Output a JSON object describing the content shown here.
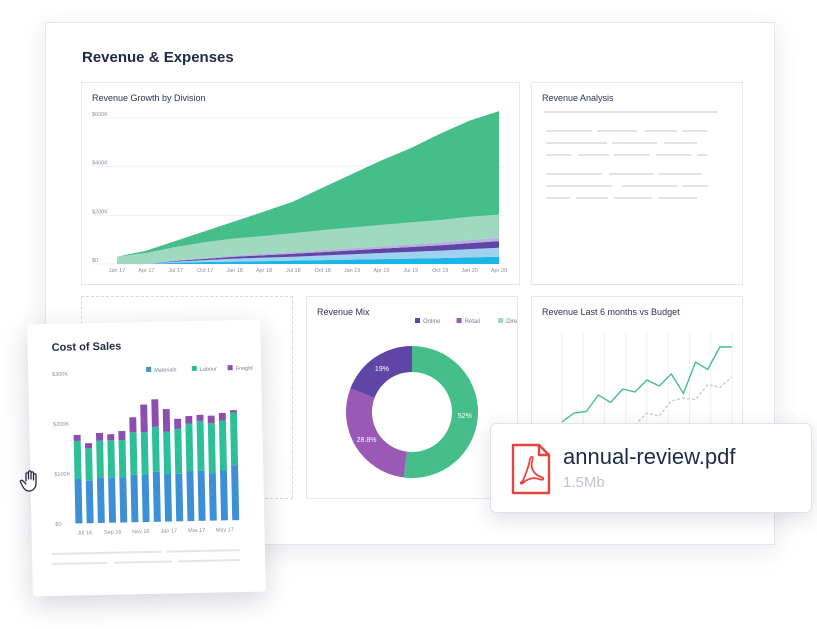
{
  "dashboard": {
    "title": "Revenue & Expenses"
  },
  "colors": {
    "green": "#45be8a",
    "light_green": "#9fd9bf",
    "purple": "#5f46a6",
    "lavender": "#b8b0dd",
    "light_blue": "#9fd2ef",
    "cyan": "#19b6e8",
    "pdf_red": "#e4463f"
  },
  "growth_card": {
    "title": "Revenue Growth by Division"
  },
  "analysis_card": {
    "title": "Revenue Analysis"
  },
  "mix_card": {
    "title": "Revenue Mix"
  },
  "budget_card": {
    "title": "Revenue Last 6 months vs Budget"
  },
  "cost_sheet": {
    "title": "Cost of Sales"
  },
  "pdf": {
    "filename": "annual-review.pdf",
    "size": "1.5Mb",
    "icon": "pdf-file-icon"
  },
  "cursor": {
    "icon": "hand-cursor-icon"
  },
  "chart_data": [
    {
      "id": "growth",
      "type": "area",
      "title": "Revenue Growth by Division",
      "x": [
        "Jan 17",
        "Apr 17",
        "Jul 17",
        "Oct 17",
        "Jan 18",
        "Apr 18",
        "Jul 18",
        "Oct 18",
        "Jan 19",
        "Apr 19",
        "Jul 19",
        "Oct 19",
        "Jan 20",
        "Apr 20"
      ],
      "y_ticks": [
        "$0",
        "$200K",
        "$400K",
        "$600K"
      ],
      "ylim": [
        0,
        600
      ],
      "stacked": true,
      "series": [
        {
          "color": "#19b6e8",
          "values": [
            0,
            0,
            5,
            8,
            10,
            12,
            14,
            16,
            18,
            20,
            22,
            24,
            27,
            30
          ]
        },
        {
          "color": "#9fd2ef",
          "values": [
            0,
            0,
            5,
            8,
            12,
            14,
            16,
            19,
            22,
            25,
            28,
            31,
            34,
            37
          ]
        },
        {
          "color": "#5f46a6",
          "values": [
            0,
            0,
            3,
            5,
            8,
            10,
            12,
            14,
            16,
            18,
            20,
            22,
            25,
            27
          ]
        },
        {
          "color": "#b8b0dd",
          "values": [
            0,
            0,
            2,
            4,
            5,
            6,
            7,
            8,
            9,
            10,
            11,
            12,
            13,
            14
          ]
        },
        {
          "color": "#9fd9bf",
          "values": [
            30,
            45,
            55,
            65,
            70,
            73,
            78,
            82,
            85,
            88,
            90,
            92,
            95,
            95
          ]
        },
        {
          "color": "#45be8a",
          "values": [
            0,
            10,
            25,
            45,
            70,
            100,
            130,
            175,
            220,
            265,
            305,
            355,
            395,
            425
          ]
        }
      ]
    },
    {
      "id": "mix",
      "type": "pie",
      "title": "Revenue Mix",
      "legend": [
        "Online",
        "Retail",
        "Direct"
      ],
      "slices": [
        {
          "name": "Online",
          "value": 52,
          "label": "52%",
          "color": "#45be8a"
        },
        {
          "name": "Retail",
          "value": 28.8,
          "label": "28.8%",
          "color": "#9b59b6"
        },
        {
          "name": "Direct",
          "value": 19.2,
          "label": "19%",
          "color": "#5f46a6"
        }
      ]
    },
    {
      "id": "budget",
      "type": "line",
      "title": "Revenue Last 6 months vs Budget",
      "series": [
        {
          "color": "#45be8a",
          "values": [
            10,
            16,
            17,
            28,
            23,
            32,
            30,
            38,
            34,
            42,
            29,
            50,
            45,
            60,
            60
          ]
        },
        {
          "color": "#c8ccd2",
          "values": [
            null,
            null,
            null,
            null,
            null,
            null,
            8,
            16,
            14,
            24,
            26,
            25,
            35,
            33,
            40
          ]
        }
      ],
      "ylim": [
        0,
        70
      ]
    },
    {
      "id": "cost",
      "type": "bar",
      "title": "Cost of Sales",
      "legend": [
        "Materials",
        "Labour",
        "Freight"
      ],
      "x_ticks": [
        "Jul 16",
        "Sep 16",
        "Nov 16",
        "Jan 17",
        "Mar 17",
        "May 17"
      ],
      "y_ticks": [
        "$0",
        "$100K",
        "$200K",
        "$300K"
      ],
      "ylim": [
        0,
        300
      ],
      "series": [
        {
          "name": "Materials",
          "color": "#3d8fd6",
          "values": [
            90,
            85,
            90,
            90,
            90,
            95,
            95,
            100,
            95,
            95,
            100,
            100,
            95,
            100,
            110
          ]
        },
        {
          "name": "Labour",
          "color": "#2dbf9a",
          "values": [
            75,
            65,
            75,
            75,
            75,
            85,
            85,
            90,
            85,
            90,
            95,
            100,
            100,
            100,
            105
          ]
        },
        {
          "name": "Freight",
          "color": "#8e4db0",
          "values": [
            12,
            10,
            15,
            12,
            18,
            30,
            55,
            55,
            45,
            20,
            15,
            12,
            15,
            15,
            5
          ]
        }
      ]
    }
  ]
}
